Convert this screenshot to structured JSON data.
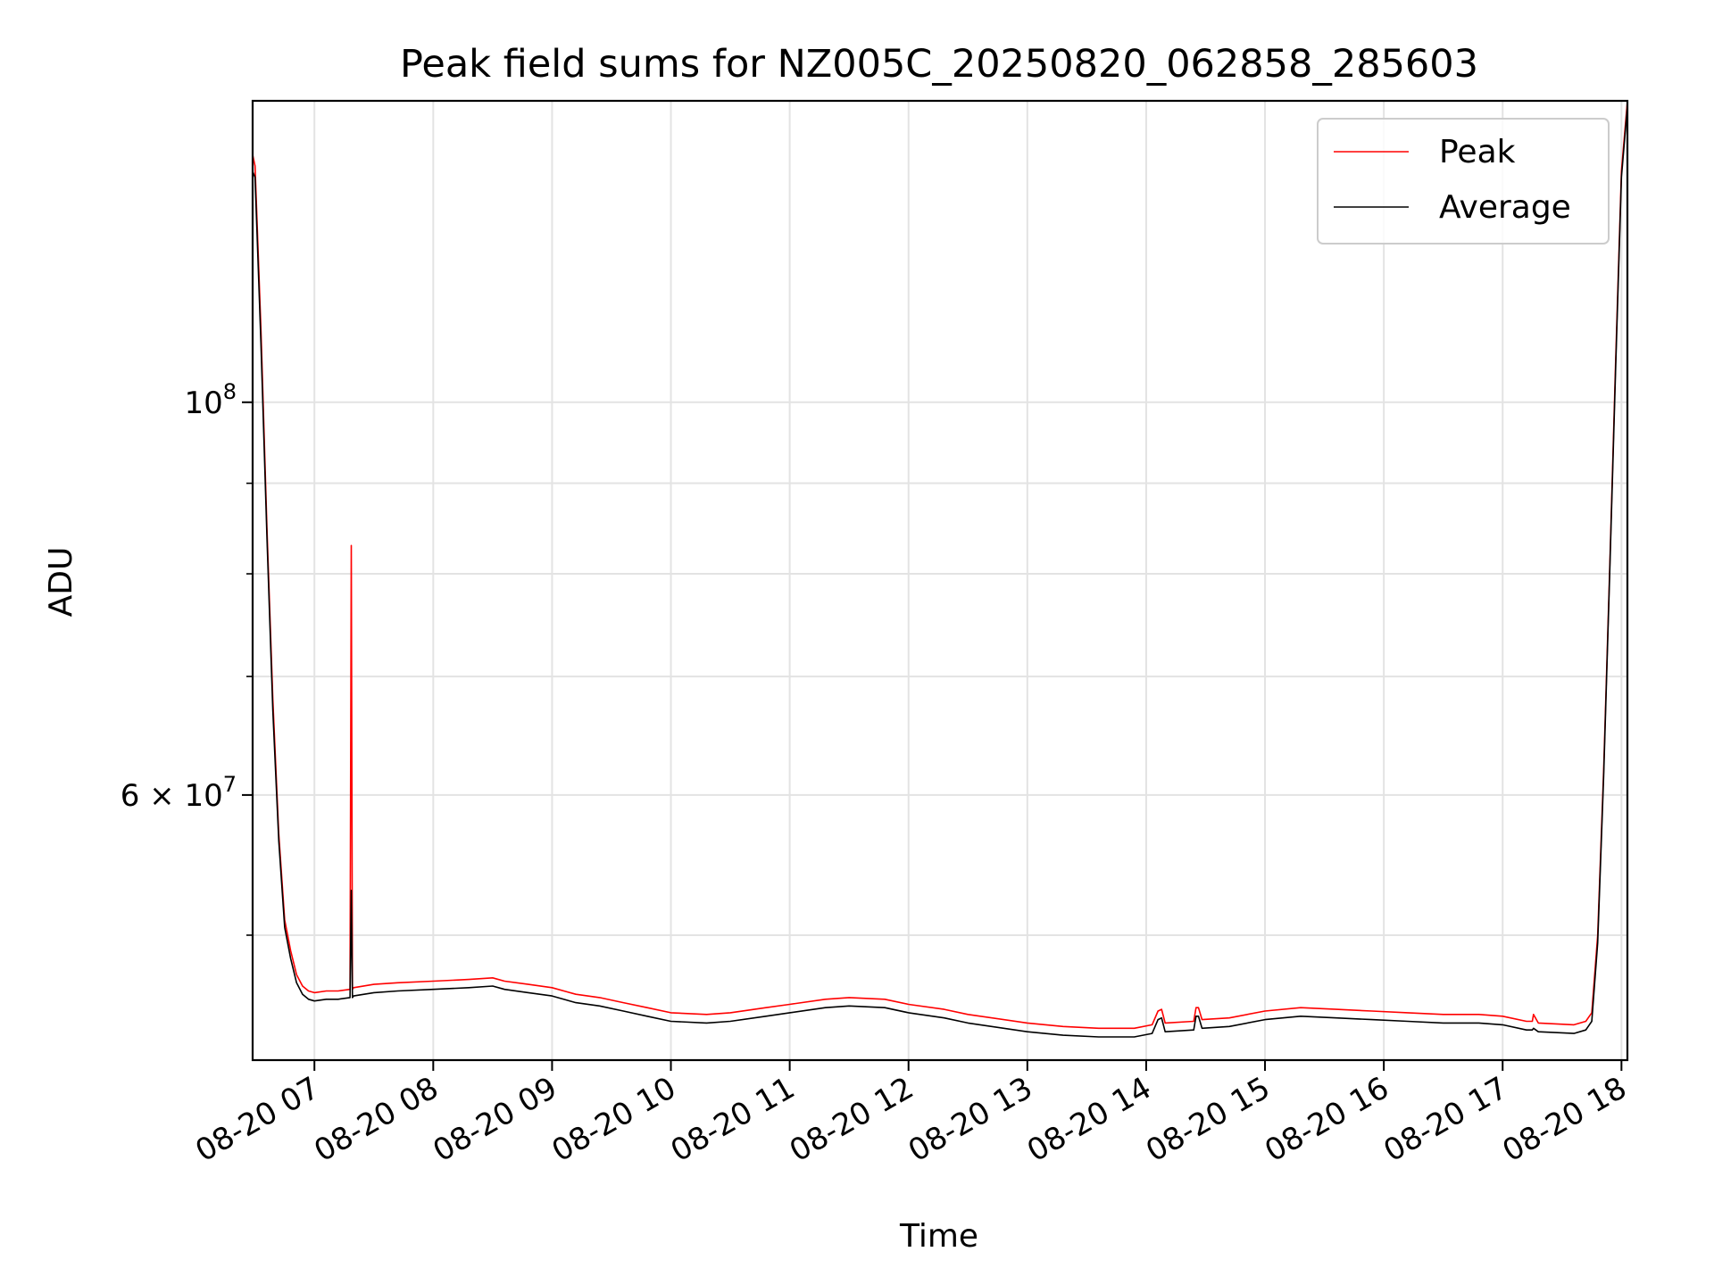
{
  "chart_data": {
    "type": "line",
    "title": "Peak field sums for NZ005C_20250820_062858_285603",
    "xlabel": "Time",
    "ylabel": "ADU",
    "x_unit": "hours (2025-08-20)",
    "xlim": [
      6.48,
      18.05
    ],
    "ylim": [
      42500000,
      148000000
    ],
    "y_scale": "log",
    "grid": true,
    "legend_position": "top-right",
    "x_tick_labels": [
      "08-20 07",
      "08-20 08",
      "08-20 09",
      "08-20 10",
      "08-20 11",
      "08-20 12",
      "08-20 13",
      "08-20 14",
      "08-20 15",
      "08-20 16",
      "08-20 17",
      "08-20 18"
    ],
    "x_tick_values": [
      7,
      8,
      9,
      10,
      11,
      12,
      13,
      14,
      15,
      16,
      17,
      18
    ],
    "y_major_ticks": [
      {
        "value": 100000000,
        "base": "10",
        "exp": "8"
      },
      {
        "value": 60000000,
        "base": "6 × 10",
        "exp": "7"
      }
    ],
    "y_minor_ticks": [
      50000000,
      70000000,
      80000000,
      90000000
    ],
    "series": [
      {
        "name": "Peak",
        "color": "#ff0000",
        "x": [
          6.48,
          6.5,
          6.55,
          6.6,
          6.65,
          6.7,
          6.75,
          6.8,
          6.85,
          6.9,
          6.95,
          7.0,
          7.1,
          7.2,
          7.3,
          7.31,
          7.32,
          7.33,
          7.5,
          7.7,
          8.0,
          8.3,
          8.5,
          8.6,
          8.8,
          9.0,
          9.2,
          9.4,
          9.6,
          9.8,
          10.0,
          10.3,
          10.5,
          10.8,
          11.0,
          11.3,
          11.5,
          11.8,
          12.0,
          12.3,
          12.5,
          13.0,
          13.3,
          13.6,
          13.9,
          14.05,
          14.1,
          14.13,
          14.16,
          14.4,
          14.42,
          14.44,
          14.47,
          14.7,
          15.0,
          15.3,
          15.6,
          15.9,
          16.2,
          16.5,
          16.8,
          17.0,
          17.2,
          17.25,
          17.26,
          17.3,
          17.6,
          17.7,
          17.75,
          17.8,
          17.85,
          17.9,
          17.95,
          18.0,
          18.05
        ],
        "y": [
          138000000,
          136000000,
          110000000,
          85000000,
          68000000,
          57000000,
          51000000,
          49000000,
          47500000,
          46800000,
          46500000,
          46400000,
          46500000,
          46500000,
          46600000,
          83000000,
          46600000,
          46700000,
          46900000,
          47000000,
          47100000,
          47200000,
          47300000,
          47100000,
          46900000,
          46700000,
          46300000,
          46100000,
          45800000,
          45500000,
          45200000,
          45100000,
          45200000,
          45500000,
          45700000,
          46000000,
          46100000,
          46000000,
          45700000,
          45400000,
          45100000,
          44600000,
          44400000,
          44300000,
          44300000,
          44500000,
          45300000,
          45400000,
          44600000,
          44700000,
          45500000,
          45500000,
          44800000,
          44900000,
          45300000,
          45500000,
          45400000,
          45300000,
          45200000,
          45100000,
          45100000,
          45000000,
          44700000,
          44700000,
          45100000,
          44600000,
          44500000,
          44700000,
          45200000,
          50000000,
          62000000,
          80000000,
          105000000,
          135000000,
          148000000
        ]
      },
      {
        "name": "Average",
        "color": "#000000",
        "x": [
          6.48,
          6.5,
          6.55,
          6.6,
          6.65,
          6.7,
          6.75,
          6.8,
          6.85,
          6.9,
          6.95,
          7.0,
          7.1,
          7.2,
          7.3,
          7.31,
          7.32,
          7.33,
          7.5,
          7.7,
          8.0,
          8.3,
          8.5,
          8.6,
          8.8,
          9.0,
          9.2,
          9.4,
          9.6,
          9.8,
          10.0,
          10.3,
          10.5,
          10.8,
          11.0,
          11.3,
          11.5,
          11.8,
          12.0,
          12.3,
          12.5,
          13.0,
          13.3,
          13.6,
          13.9,
          14.05,
          14.1,
          14.13,
          14.16,
          14.4,
          14.42,
          14.44,
          14.47,
          14.7,
          15.0,
          15.3,
          15.6,
          15.9,
          16.2,
          16.5,
          16.8,
          17.0,
          17.2,
          17.25,
          17.26,
          17.3,
          17.6,
          17.7,
          17.75,
          17.8,
          17.85,
          17.9,
          17.95,
          18.0,
          18.05
        ],
        "y": [
          135000000,
          134000000,
          108000000,
          84000000,
          67000000,
          56500000,
          50500000,
          48500000,
          47000000,
          46300000,
          46000000,
          45900000,
          46000000,
          46000000,
          46100000,
          53000000,
          46100000,
          46200000,
          46400000,
          46500000,
          46600000,
          46700000,
          46800000,
          46600000,
          46400000,
          46200000,
          45800000,
          45600000,
          45300000,
          45000000,
          44700000,
          44600000,
          44700000,
          45000000,
          45200000,
          45500000,
          45600000,
          45500000,
          45200000,
          44900000,
          44600000,
          44100000,
          43900000,
          43800000,
          43800000,
          44000000,
          44800000,
          44900000,
          44100000,
          44200000,
          45000000,
          45000000,
          44300000,
          44400000,
          44800000,
          45000000,
          44900000,
          44800000,
          44700000,
          44600000,
          44600000,
          44500000,
          44200000,
          44200000,
          44300000,
          44100000,
          44000000,
          44200000,
          44700000,
          49500000,
          61500000,
          79500000,
          104000000,
          134000000,
          147000000
        ]
      }
    ]
  }
}
